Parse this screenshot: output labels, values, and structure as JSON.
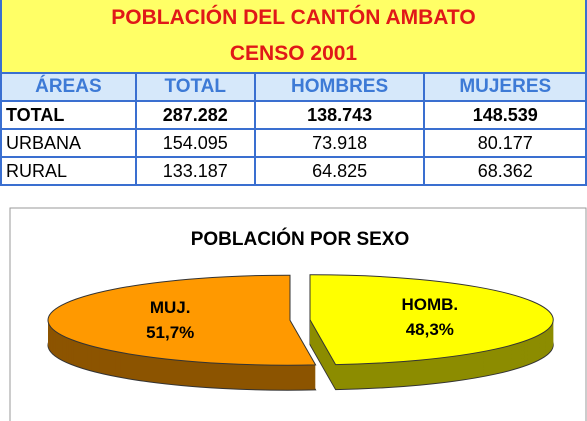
{
  "table": {
    "title_lines": [
      "POBLACIÓN DEL CANTÓN AMBATO",
      "CENSO 2001"
    ],
    "headers": [
      "ÁREAS",
      "TOTAL",
      "HOMBRES",
      "MUJERES"
    ],
    "rows": [
      [
        "TOTAL",
        "287.282",
        "138.743",
        "148.539"
      ],
      [
        "URBANA",
        "154.095",
        "73.918",
        "80.177"
      ],
      [
        "RURAL",
        "133.187",
        "64.825",
        "68.362"
      ]
    ]
  },
  "chart_data": {
    "type": "pie",
    "title": "POBLACIÓN POR SEXO",
    "categories": [
      "MUJ.",
      "HOMB."
    ],
    "values": [
      51.7,
      48.3
    ],
    "value_labels": [
      "51,7%",
      "48,3%"
    ],
    "colors": [
      "#ff9900",
      "#ffff00"
    ]
  }
}
